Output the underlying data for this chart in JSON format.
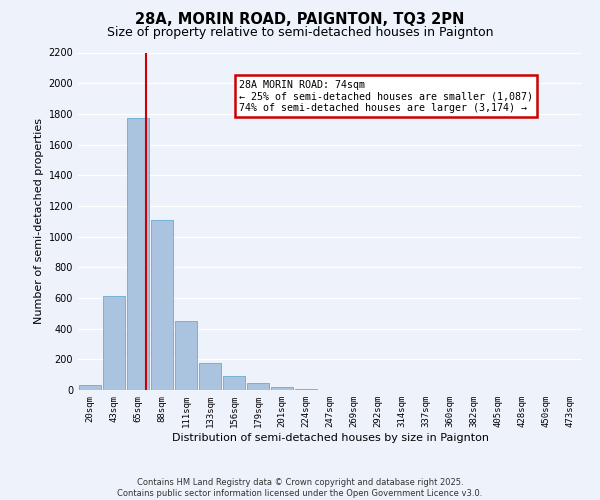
{
  "title": "28A, MORIN ROAD, PAIGNTON, TQ3 2PN",
  "subtitle": "Size of property relative to semi-detached houses in Paignton",
  "xlabel": "Distribution of semi-detached houses by size in Paignton",
  "ylabel": "Number of semi-detached properties",
  "bin_labels": [
    "20sqm",
    "43sqm",
    "65sqm",
    "88sqm",
    "111sqm",
    "133sqm",
    "156sqm",
    "179sqm",
    "201sqm",
    "224sqm",
    "247sqm",
    "269sqm",
    "292sqm",
    "314sqm",
    "337sqm",
    "360sqm",
    "382sqm",
    "405sqm",
    "428sqm",
    "450sqm",
    "473sqm"
  ],
  "bar_values": [
    30,
    610,
    1770,
    1110,
    450,
    175,
    90,
    45,
    20,
    5,
    2,
    1,
    0,
    0,
    0,
    0,
    0,
    0,
    0,
    0,
    0
  ],
  "bar_color": "#aac4e0",
  "bar_edge_color": "#6aaad4",
  "property_line_x": 2.35,
  "annotation_text_line1": "28A MORIN ROAD: 74sqm",
  "annotation_text_line2": "← 25% of semi-detached houses are smaller (1,087)",
  "annotation_text_line3": "74% of semi-detached houses are larger (3,174) →",
  "annotation_box_color": "#cc0000",
  "ylim": [
    0,
    2200
  ],
  "yticks": [
    0,
    200,
    400,
    600,
    800,
    1000,
    1200,
    1400,
    1600,
    1800,
    2000,
    2200
  ],
  "footer_line1": "Contains HM Land Registry data © Crown copyright and database right 2025.",
  "footer_line2": "Contains public sector information licensed under the Open Government Licence v3.0.",
  "background_color": "#eef2fb",
  "grid_color": "#ffffff",
  "title_fontsize": 10.5,
  "subtitle_fontsize": 9,
  "tick_label_fontsize": 6.5,
  "axis_label_fontsize": 8,
  "footer_fontsize": 6.0
}
